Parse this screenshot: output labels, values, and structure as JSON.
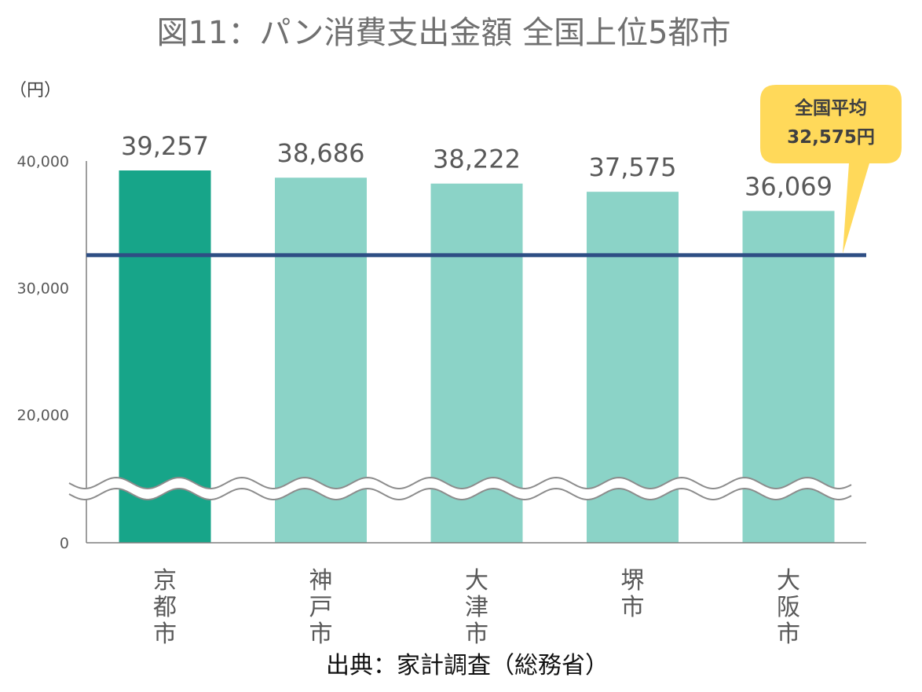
{
  "chart_data": {
    "type": "bar",
    "title": "図11：パン消費支出金額 全国上位5都市",
    "ylabel": "（円）",
    "categories": [
      "京都市",
      "神戸市",
      "大津市",
      "堺市",
      "大阪市"
    ],
    "values": [
      39257,
      38686,
      38222,
      37575,
      36069
    ],
    "value_labels": [
      "39,257",
      "38,686",
      "38,222",
      "37,575",
      "36,069"
    ],
    "y_ticks": [
      {
        "value": 0,
        "label": "0"
      },
      {
        "value": 20000,
        "label": "20,000"
      },
      {
        "value": 30000,
        "label": "30,000"
      },
      {
        "value": 40000,
        "label": "40,000"
      }
    ],
    "ylim": [
      0,
      40000
    ],
    "axis_break": "wavy break between 0 and 20,000",
    "grid": false,
    "reference_line": {
      "value": 32575,
      "label_line1": "全国平均",
      "label_line2": "32,575円",
      "color": "#2E4E84"
    },
    "bar_colors": [
      "#17A589",
      "#8BD3C7",
      "#8BD3C7",
      "#8BD3C7",
      "#8BD3C7"
    ],
    "callout_color": "#FFD95A",
    "source": "出典：家計調査（総務省）"
  }
}
